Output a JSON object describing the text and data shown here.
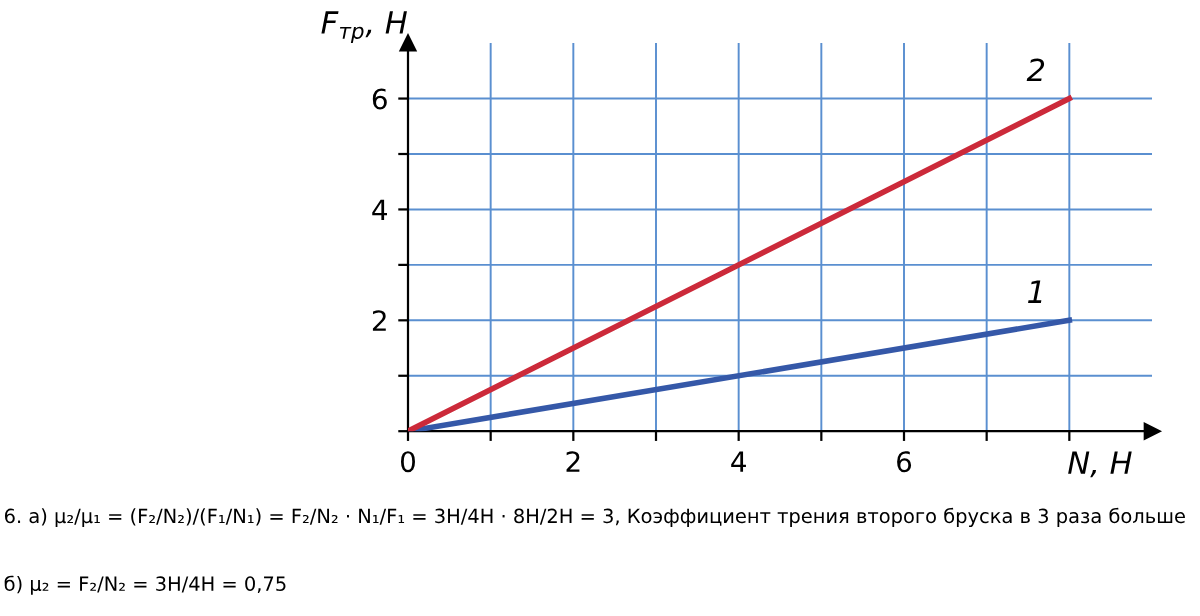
{
  "chart_data": {
    "type": "line",
    "xlabel": "N, Н",
    "ylabel": "F$_{тр}$, Н",
    "x": [
      0,
      8
    ],
    "series": [
      {
        "name": "1",
        "color": "#3558a8",
        "values": [
          0,
          2
        ]
      },
      {
        "name": "2",
        "color": "#cc2a3a",
        "values": [
          0,
          6
        ]
      }
    ],
    "xlim": [
      0,
      9
    ],
    "ylim": [
      0,
      7
    ],
    "xticks": [
      0,
      {
        "value": 1,
        "label": null
      },
      2,
      {
        "value": 3,
        "label": null
      },
      4,
      {
        "value": 5,
        "label": null
      },
      6,
      {
        "value": 7,
        "label": null
      },
      {
        "value": 8,
        "label": null
      }
    ],
    "yticks": [
      {
        "value": 0,
        "label": null
      },
      {
        "value": 1,
        "label": null
      },
      2,
      {
        "value": 3,
        "label": null
      },
      4,
      {
        "value": 5,
        "label": null
      },
      6
    ],
    "grid": true,
    "marker": "none",
    "line_style": "solid",
    "annotations": [
      "6. а) μ₂/μ₁ = (F₂/N₂)/(F₁/N₁) = F₂/N₂ · N₁/F₁ = 3Н/4Н · 8Н/2Н = 3, Коэффициент трения второго бруска в 3 раза больше",
      "б) μ₂ = F₂/N₂ = 3Н/4Н = 0,75"
    ]
  }
}
